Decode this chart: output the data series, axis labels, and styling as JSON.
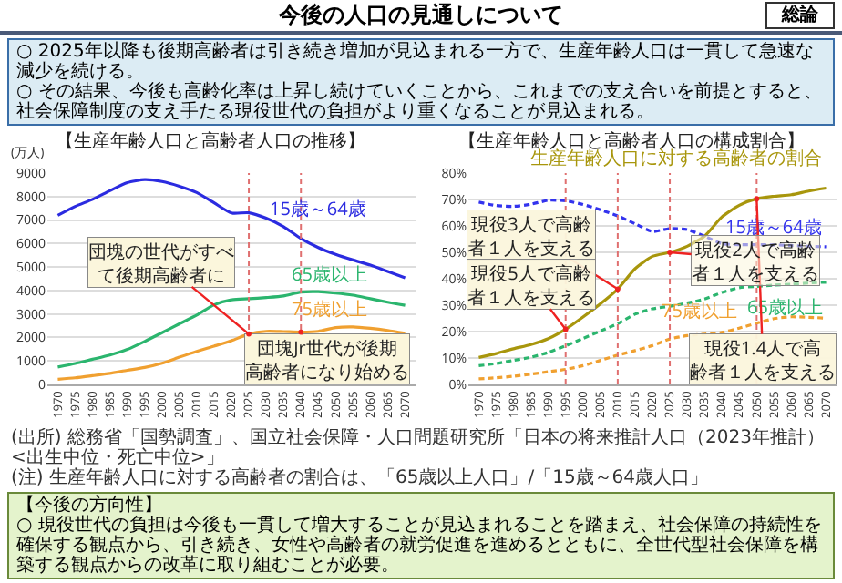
{
  "chart_data": [
    {
      "type": "other",
      "title": "今後の人口の見通しについて",
      "annotations": [
        "総論",
        "○ 2025年以降も後期高齢者は引き続き増加が見込まれる一方で、生産年齢人口は一貫して急速な減少を続ける。",
        "○ その結果、今後も高齢化率は上昇し続けていくことから、これまでの支え合いを前提とすると、社会保障制度の支え手たる現役世代の負担がより重くなることが見込まれる。"
      ]
    },
    {
      "type": "line",
      "title": "【生産年齢人口と高齢者人口の推移】",
      "ylabel": "(万人)",
      "x": [
        1970,
        1975,
        1980,
        1985,
        1990,
        1995,
        2000,
        2005,
        2010,
        2015,
        2020,
        2025,
        2030,
        2035,
        2040,
        2045,
        2050,
        2055,
        2060,
        2065,
        2070
      ],
      "xlim": [
        1967,
        2073
      ],
      "xticks": [
        1970,
        1975,
        1980,
        1985,
        1990,
        1995,
        2000,
        2005,
        2010,
        2015,
        2020,
        2025,
        2030,
        2035,
        2040,
        2045,
        2050,
        2055,
        2060,
        2065,
        2070
      ],
      "ylim": [
        0,
        9000
      ],
      "yticks": [
        0,
        1000,
        2000,
        3000,
        4000,
        5000,
        6000,
        7000,
        8000,
        9000
      ],
      "grid": "y",
      "legend": false,
      "series": [
        {
          "name": "15歳～64歳",
          "color": "#2b2be0",
          "values": [
            7200,
            7580,
            7880,
            8250,
            8590,
            8720,
            8640,
            8440,
            8170,
            7730,
            7300,
            7310,
            7080,
            6720,
            6210,
            5830,
            5540,
            5300,
            5080,
            4810,
            4540
          ]
        },
        {
          "name": "65歳以上",
          "color": "#2bb56e",
          "values": [
            740,
            890,
            1070,
            1250,
            1490,
            1830,
            2200,
            2580,
            2950,
            3390,
            3600,
            3650,
            3700,
            3770,
            3930,
            3950,
            3890,
            3800,
            3650,
            3500,
            3370
          ]
        },
        {
          "name": "75歳以上",
          "color": "#f0a030",
          "values": [
            220,
            280,
            370,
            470,
            600,
            720,
            900,
            1160,
            1410,
            1630,
            1860,
            2150,
            2260,
            2250,
            2230,
            2260,
            2420,
            2450,
            2390,
            2300,
            2180
          ]
        }
      ],
      "ref_lines": [
        {
          "axis": "x",
          "value": 2025,
          "color": "#e07070",
          "line_style": "dotted"
        },
        {
          "axis": "x",
          "value": 2040,
          "color": "#e07070",
          "line_style": "dotted"
        }
      ],
      "annotations": [
        {
          "text": "団塊の世代がすべて後期高齢者に",
          "x": 2025,
          "y": 2150
        },
        {
          "text": "団塊Jr世代が後期高齢者になり始める",
          "x": 2040,
          "y": 2230
        },
        "(出所) 総務省「国勢調査」、国立社会保障・人口問題研究所「日本の将来推計人口（2023年推計）<出生中位・死亡中位>」",
        "(注) 生産年齢人口に対する高齢者の割合は、「65歳以上人口」/「15歳～64歳人口」"
      ]
    },
    {
      "type": "line",
      "title": "【生産年齢人口と高齢者人口の構成割合】",
      "x": [
        1970,
        1975,
        1980,
        1985,
        1990,
        1995,
        2000,
        2005,
        2010,
        2015,
        2020,
        2025,
        2030,
        2035,
        2040,
        2045,
        2050,
        2055,
        2060,
        2065,
        2070
      ],
      "xlim": [
        1967,
        2073
      ],
      "xticks": [
        1970,
        1975,
        1980,
        1985,
        1990,
        1995,
        2000,
        2005,
        2010,
        2015,
        2020,
        2025,
        2030,
        2035,
        2040,
        2045,
        2050,
        2055,
        2060,
        2065,
        2070
      ],
      "ylim": [
        0,
        80
      ],
      "yticks": [
        {
          "value": 0,
          "label": "0%"
        },
        {
          "value": 10,
          "label": "10%"
        },
        {
          "value": 20,
          "label": "20%"
        },
        {
          "value": 30,
          "label": "30%"
        },
        {
          "value": 40,
          "label": "40%"
        },
        {
          "value": 50,
          "label": "50%"
        },
        {
          "value": 60,
          "label": "60%"
        },
        {
          "value": 70,
          "label": "70%"
        },
        {
          "value": 80,
          "label": "80%"
        }
      ],
      "grid": "y",
      "legend": false,
      "line_style": "dotted",
      "series": [
        {
          "name": "生産年齢人口に対する高齢者の割合",
          "color": "#a8960c",
          "line_style": "solid",
          "values": [
            10.2,
            11.7,
            13.5,
            15.1,
            17.3,
            20.9,
            25.5,
            30.5,
            36.1,
            43.8,
            48.5,
            50.0,
            52.3,
            56.1,
            63.4,
            67.8,
            70.3,
            71.2,
            71.8,
            73.2,
            74.3
          ]
        },
        {
          "name": "15歳～64歳",
          "color": "#3333ee",
          "values": [
            69.0,
            67.7,
            67.4,
            68.2,
            69.7,
            69.5,
            68.1,
            66.1,
            63.8,
            60.8,
            57.9,
            59.0,
            58.6,
            56.1,
            53.3,
            52.9,
            52.9,
            52.8,
            52.6,
            52.3,
            52.1
          ]
        },
        {
          "name": "65歳以上",
          "color": "#2bb56e",
          "values": [
            7.1,
            7.9,
            9.1,
            10.3,
            12.1,
            14.6,
            17.4,
            20.2,
            23.0,
            26.6,
            28.6,
            29.6,
            30.8,
            32.3,
            34.8,
            36.6,
            37.1,
            37.6,
            37.9,
            38.4,
            38.7
          ]
        },
        {
          "name": "75歳以上",
          "color": "#f0a030",
          "values": [
            2.1,
            2.5,
            3.1,
            3.9,
            4.8,
            5.7,
            7.1,
            9.1,
            11.1,
            12.8,
            14.7,
            17.2,
            18.5,
            19.0,
            19.7,
            21.3,
            23.2,
            24.9,
            25.6,
            25.4,
            25.1
          ]
        }
      ],
      "ref_lines": [
        {
          "axis": "x",
          "value": 1995,
          "color": "#e07070",
          "line_style": "dotted"
        },
        {
          "axis": "x",
          "value": 2010,
          "color": "#e07070",
          "line_style": "dotted"
        },
        {
          "axis": "x",
          "value": 2025,
          "color": "#e07070",
          "line_style": "dotted"
        },
        {
          "axis": "x",
          "value": 2050,
          "color": "#e07070",
          "line_style": "dotted"
        }
      ],
      "annotations": [
        {
          "text": "現役5人で高齢者１人を支える",
          "x": 1995,
          "y": 20.9
        },
        {
          "text": "現役3人で高齢者１人を支える",
          "x": 2010,
          "y": 36.1
        },
        {
          "text": "現役2人で高齢者１人を支える",
          "x": 2025,
          "y": 50.0
        },
        {
          "text": "現役1.4人で高齢者１人を支える",
          "x": 2050,
          "y": 70.3
        }
      ]
    },
    {
      "type": "other",
      "title": "【今後の方向性】",
      "annotations": [
        "○ 現役世代の負担は今後も一貫して増大することが見込まれることを踏まえ、社会保障の持続性を確保する観点から、引き続き、女性や高齢者の就労促進を進めるとともに、全世代型社会保障を構築する観点からの改革に取り組むことが必要。"
      ]
    }
  ]
}
